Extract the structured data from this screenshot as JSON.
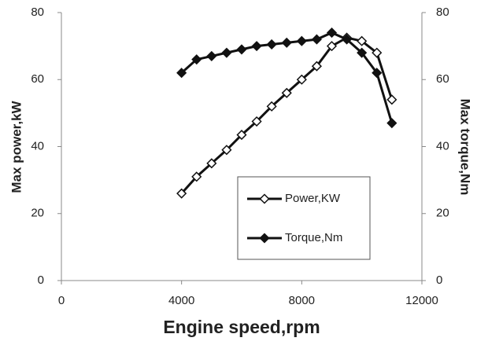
{
  "chart_data": {
    "type": "line",
    "xlabel": "Engine speed,rpm",
    "ylabel": "Max power,kW",
    "y2label": "Max torque,Nm",
    "x": [
      4000,
      4500,
      5000,
      5500,
      6000,
      6500,
      7000,
      7500,
      8000,
      8500,
      9000,
      9500,
      10000,
      10500,
      11000
    ],
    "series": [
      {
        "name": "Power,KW",
        "color": "#111111",
        "filled": false,
        "values": [
          26,
          31,
          35,
          39,
          43.5,
          47.5,
          52,
          56,
          60,
          64,
          70,
          72.5,
          71.5,
          68,
          54
        ]
      },
      {
        "name": "Torque,Nm",
        "color": "#111111",
        "filled": true,
        "axis": "y2",
        "values": [
          62,
          66,
          67,
          68,
          69,
          70,
          70.5,
          71,
          71.5,
          72,
          74,
          72,
          68,
          62,
          47
        ]
      }
    ],
    "xlim": [
      0,
      12000
    ],
    "xticks": [
      0,
      4000,
      8000,
      12000
    ],
    "ylim": [
      0,
      80
    ],
    "yticks": [
      0,
      20,
      40,
      60,
      80
    ],
    "y2lim": [
      0,
      80
    ],
    "y2ticks": [
      0,
      20,
      40,
      60,
      80
    ],
    "grid": false,
    "legend": "lower right"
  }
}
